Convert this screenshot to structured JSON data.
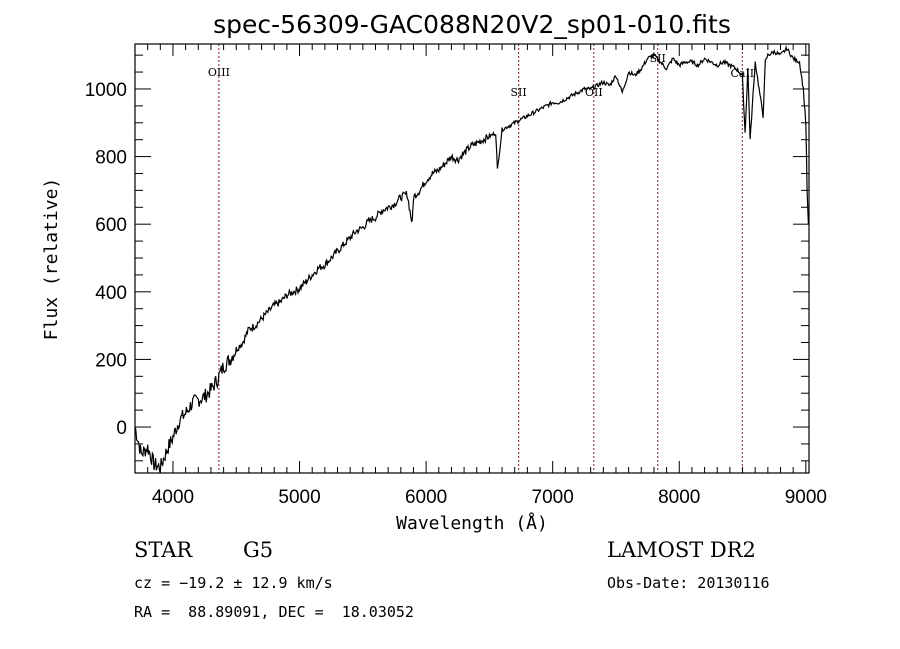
{
  "chart_data": {
    "type": "line",
    "title": "spec-56309-GAC088N20V2_sp01-010.fits",
    "xlabel": "Wavelength (Å)",
    "ylabel": "Flux (relative)",
    "xlim": [
      3700,
      9025
    ],
    "ylim": [
      -136,
      1133
    ],
    "x_ticks": [
      4000,
      5000,
      6000,
      7000,
      8000,
      9000
    ],
    "y_ticks": [
      0,
      200,
      400,
      600,
      800,
      1000
    ],
    "grid": false,
    "line_color": "#000000",
    "marker_color": "#8b1a1a",
    "spectral_lines": [
      {
        "label": "OIII",
        "wavelength": 4363
      },
      {
        "label": "SII",
        "wavelength": 6731
      },
      {
        "label": "OII",
        "wavelength": 7325
      },
      {
        "label": "SII",
        "wavelength": 7830
      },
      {
        "label": "CaII",
        "wavelength": 8498
      }
    ],
    "series": [
      {
        "name": "flux",
        "x": [
          3700,
          3750,
          3800,
          3850,
          3900,
          3950,
          4000,
          4050,
          4100,
          4150,
          4200,
          4250,
          4300,
          4350,
          4400,
          4450,
          4500,
          4550,
          4600,
          4650,
          4700,
          4750,
          4800,
          4850,
          4900,
          4950,
          5000,
          5050,
          5100,
          5150,
          5200,
          5250,
          5300,
          5350,
          5400,
          5450,
          5500,
          5550,
          5600,
          5650,
          5700,
          5750,
          5800,
          5850,
          5890,
          5900,
          5950,
          6000,
          6050,
          6100,
          6150,
          6200,
          6250,
          6300,
          6350,
          6400,
          6450,
          6500,
          6550,
          6563,
          6600,
          6650,
          6700,
          6750,
          6800,
          6850,
          6900,
          6950,
          7000,
          7050,
          7100,
          7150,
          7200,
          7250,
          7300,
          7350,
          7400,
          7450,
          7500,
          7550,
          7600,
          7650,
          7700,
          7750,
          7800,
          7850,
          7900,
          7950,
          8000,
          8050,
          8100,
          8150,
          8200,
          8250,
          8300,
          8350,
          8400,
          8450,
          8498,
          8520,
          8542,
          8560,
          8600,
          8662,
          8680,
          8700,
          8750,
          8800,
          8850,
          8900,
          8950,
          8980,
          9000,
          9010,
          9020
        ],
        "y": [
          0,
          -80,
          -60,
          -110,
          -120,
          -70,
          -30,
          20,
          40,
          70,
          80,
          90,
          110,
          140,
          180,
          200,
          230,
          250,
          290,
          300,
          320,
          340,
          360,
          370,
          390,
          400,
          410,
          430,
          450,
          470,
          480,
          500,
          520,
          540,
          560,
          580,
          590,
          610,
          620,
          640,
          650,
          660,
          680,
          690,
          600,
          680,
          700,
          730,
          750,
          760,
          780,
          800,
          790,
          810,
          830,
          840,
          850,
          860,
          870,
          760,
          880,
          890,
          900,
          910,
          920,
          930,
          940,
          950,
          960,
          960,
          970,
          980,
          990,
          1000,
          1000,
          1010,
          1020,
          1010,
          1040,
          990,
          1050,
          1040,
          1060,
          1090,
          1100,
          1080,
          1060,
          1090,
          1070,
          1080,
          1080,
          1070,
          1090,
          1080,
          1070,
          1080,
          1070,
          1060,
          1040,
          870,
          1060,
          850,
          1080,
          920,
          1080,
          1100,
          1110,
          1100,
          1120,
          1090,
          1080,
          1000,
          900,
          700,
          600
        ]
      }
    ]
  },
  "footer": {
    "object_class": "STAR",
    "subclass": "G5",
    "redshift_text": "cz = −19.2 ± 12.9 km/s",
    "coords_text": "RA =  88.89091, DEC =  18.03052",
    "survey": "LAMOST DR2",
    "obs_date": "Obs-Date: 20130116"
  }
}
